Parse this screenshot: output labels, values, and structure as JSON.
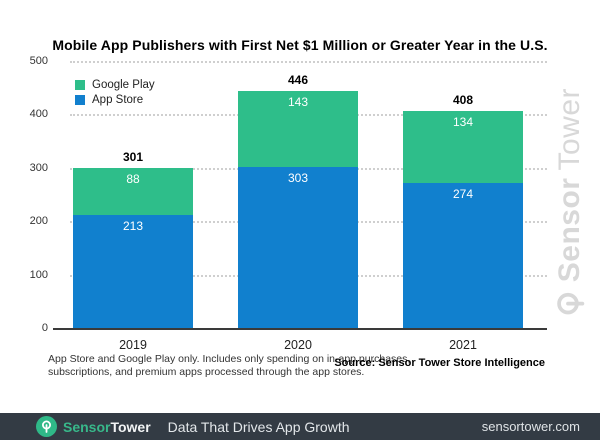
{
  "title": "Mobile App Publishers with First Net $1 Million or Greater Year in the U.S.",
  "legend": {
    "items": [
      {
        "label": "Google Play",
        "color": "#2EBE8A"
      },
      {
        "label": "App Store",
        "color": "#1180CE"
      }
    ]
  },
  "footnote": {
    "line1": "App Store and Google Play only. Includes only spending on in-app purchases,",
    "line2": "subscriptions, and premium apps processed through the app stores."
  },
  "source": "Source: Sensor Tower Store Intelligence",
  "watermark": {
    "brand_bold": "Sensor",
    "brand_light": "Tower",
    "color": "#d8d8d8"
  },
  "footer": {
    "brand_bold": "Sensor",
    "brand_light": "Tower",
    "tagline": "Data That Drives App Growth",
    "url": "sensortower.com",
    "background": "#333B44",
    "accent_green": "#38B88A"
  },
  "chart_data": {
    "type": "bar",
    "stacked": true,
    "title": "Mobile App Publishers with First Net $1 Million or Greater Year in the U.S.",
    "categories": [
      "2019",
      "2020",
      "2021"
    ],
    "series": [
      {
        "name": "Google Play",
        "color": "#2EBE8A",
        "values": [
          88,
          143,
          134
        ]
      },
      {
        "name": "App Store",
        "color": "#1180CE",
        "values": [
          213,
          303,
          274
        ]
      }
    ],
    "stack_order_bottom_to_top": [
      "App Store",
      "Google Play"
    ],
    "totals": [
      301,
      446,
      408
    ],
    "xlabel": "",
    "ylabel": "",
    "ylim": [
      0,
      500
    ],
    "yticks": [
      0,
      100,
      200,
      300,
      400,
      500
    ],
    "grid": "horizontal-dotted",
    "legend_position": "top-left"
  }
}
